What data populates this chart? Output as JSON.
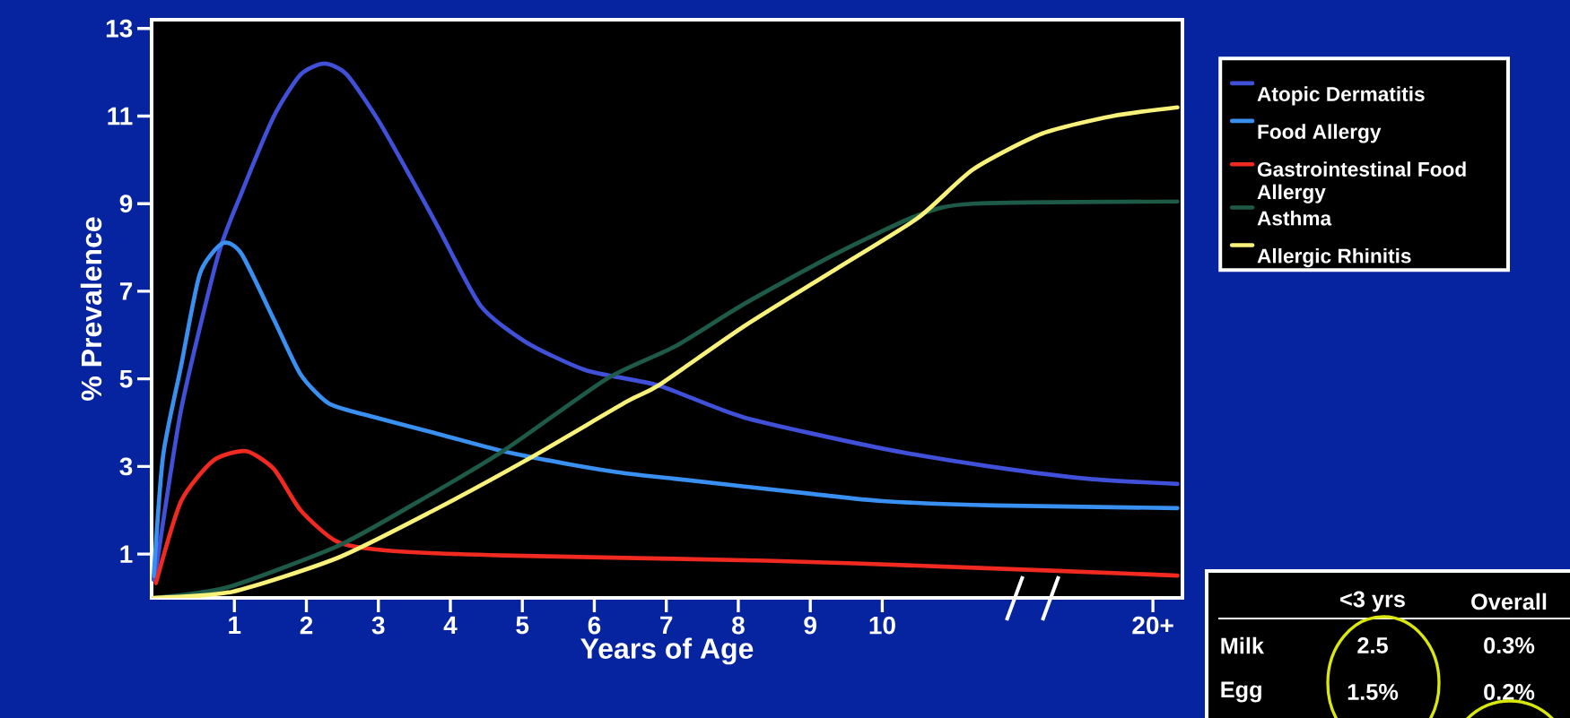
{
  "chart_data": [
    {
      "type": "line",
      "xlabel": "Years of Age",
      "ylabel": "% Prevalence",
      "xlim": [
        -0.15,
        14.17
      ],
      "ylim": [
        0,
        13.2
      ],
      "xticks": [
        1,
        2,
        3,
        4,
        5,
        6,
        7,
        8,
        9,
        10,
        {
          "value": 13.76,
          "label": "20+"
        }
      ],
      "yticks": [
        1,
        3,
        5,
        7,
        9,
        11,
        13
      ],
      "legend": "top right",
      "marker": "none",
      "line_style": "solid",
      "series": [
        {
          "name": "Atopic Dermatitis",
          "color": "#4050d8",
          "x": [
            -0.12,
            -0.09,
            0.26,
            0.77,
            1.1,
            1.55,
            1.92,
            2.25,
            2.56,
            3.0,
            3.46,
            3.84,
            4.42,
            5.05,
            5.88,
            6.89,
            8.08,
            10.0,
            11.58,
            12.86,
            14.1
          ],
          "values": [
            0.5,
            0.65,
            4.3,
            7.8,
            9.25,
            11.0,
            11.95,
            12.2,
            11.95,
            10.9,
            9.57,
            8.43,
            6.67,
            5.84,
            5.2,
            4.85,
            4.12,
            3.41,
            2.98,
            2.72,
            2.6
          ]
        },
        {
          "name": "Food Allergy",
          "color": "#3a90f0",
          "x": [
            -0.12,
            0.01,
            0.26,
            0.52,
            0.84,
            1.1,
            1.55,
            1.92,
            2.31,
            2.82,
            3.77,
            4.73,
            5.69,
            6.45,
            7.12,
            9.04,
            10.0,
            11.58,
            14.1
          ],
          "values": [
            0.5,
            3.25,
            5.3,
            7.4,
            8.1,
            7.85,
            6.35,
            5.1,
            4.44,
            4.18,
            3.77,
            3.35,
            3.04,
            2.84,
            2.72,
            2.37,
            2.21,
            2.11,
            2.05
          ]
        },
        {
          "name": "Gastrointestinal Food Allergy",
          "color": "#f02a20",
          "x": [
            -0.09,
            0.26,
            0.71,
            1.16,
            1.55,
            1.92,
            2.43,
            3.13,
            4.73,
            8.39,
            10.94,
            14.1
          ],
          "values": [
            0.34,
            2.21,
            3.14,
            3.35,
            2.94,
            2.0,
            1.28,
            1.08,
            0.97,
            0.85,
            0.71,
            0.51
          ]
        },
        {
          "name": "Asthma",
          "color": "#1e5a48",
          "x": [
            -0.12,
            0.9,
            2.43,
            3.46,
            4.73,
            6.17,
            7.12,
            8.08,
            9.35,
            10.5,
            11.26,
            14.1
          ],
          "values": [
            0.0,
            0.24,
            1.18,
            2.11,
            3.35,
            5.0,
            5.74,
            6.71,
            7.85,
            8.74,
            9.0,
            9.05
          ]
        },
        {
          "name": "Allergic Rhinitis",
          "color": "#f8f27a",
          "x": [
            -0.12,
            0.97,
            2.43,
            3.77,
            5.05,
            6.45,
            6.89,
            8.08,
            9.35,
            10.5,
            11.26,
            12.22,
            13.2,
            14.1
          ],
          "values": [
            0.0,
            0.14,
            0.91,
            2.0,
            3.14,
            4.48,
            4.85,
            6.2,
            7.5,
            8.68,
            9.78,
            10.6,
            11.0,
            11.2
          ]
        }
      ]
    },
    {
      "type": "other",
      "categories": [
        "<3 yrs",
        "Overall"
      ],
      "y_categories": [
        "Milk",
        "Egg"
      ],
      "cell_labels": [
        [
          "2.5",
          "0.3%"
        ],
        [
          "1.5%",
          "0.2%"
        ]
      ]
    }
  ]
}
